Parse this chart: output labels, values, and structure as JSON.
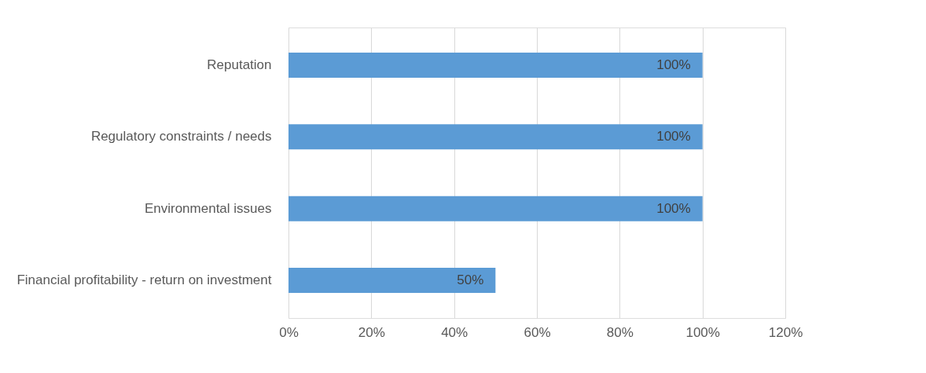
{
  "chart_data": {
    "type": "bar",
    "orientation": "horizontal",
    "categories": [
      "Reputation",
      "Regulatory constraints / needs",
      "Environmental issues",
      "Financial profitability - return on investment"
    ],
    "values": [
      100,
      100,
      100,
      50
    ],
    "color": "#5b9bd5",
    "value_labels": [
      "100%",
      "100%",
      "100%",
      "50%"
    ],
    "xlim": [
      0,
      120
    ],
    "xticks": [
      {
        "value": 0,
        "label": "0%"
      },
      {
        "value": 20,
        "label": "20%"
      },
      {
        "value": 40,
        "label": "40%"
      },
      {
        "value": 60,
        "label": "60%"
      },
      {
        "value": 80,
        "label": "80%"
      },
      {
        "value": 100,
        "label": "100%"
      },
      {
        "value": 120,
        "label": "120%"
      }
    ],
    "grid": "x"
  }
}
